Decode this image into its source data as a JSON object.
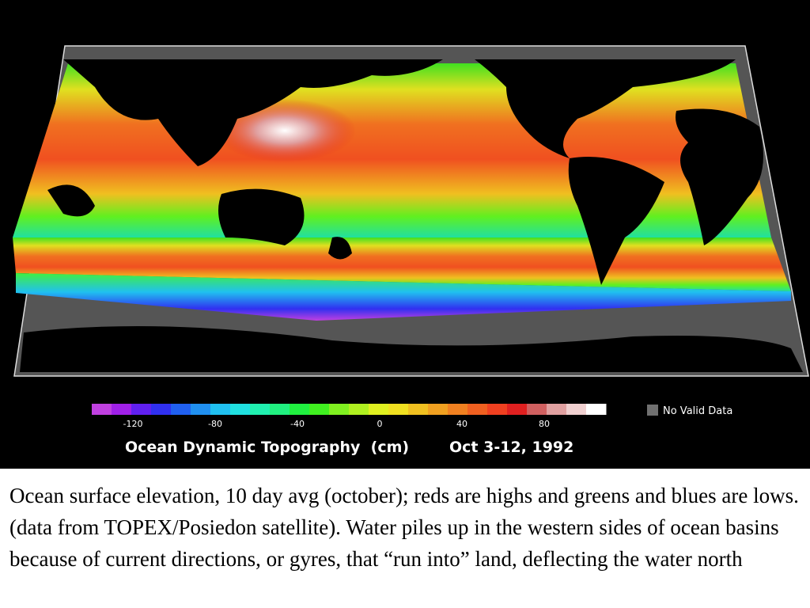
{
  "figure": {
    "colorbar": {
      "ticks": [
        -120,
        -80,
        -40,
        0,
        40,
        80
      ],
      "colors": [
        "#c040e0",
        "#a020e8",
        "#6020f0",
        "#3030f0",
        "#2060f0",
        "#2090f0",
        "#20c0f0",
        "#20e0e0",
        "#20f0b0",
        "#20f080",
        "#20f040",
        "#40f020",
        "#80f020",
        "#b0f020",
        "#e0f020",
        "#f0e020",
        "#f0c020",
        "#f0a020",
        "#f08020",
        "#f06020",
        "#f04020",
        "#e02020",
        "#d06060",
        "#e0a0a0",
        "#f0d0d0",
        "#ffffff"
      ],
      "no_data_label": "No Valid Data",
      "no_data_color": "#707070"
    },
    "title": "Ocean Dynamic Topography  (cm)",
    "date": "Oct 3-12, 1992"
  },
  "caption": "Ocean surface elevation, 10 day avg (october); reds are highs and greens and blues are lows. (data from TOPEX/Posiedon satellite). Water piles up in the western sides of ocean basins because of current directions, or gyres, that “run into” land, deflecting the water north"
}
